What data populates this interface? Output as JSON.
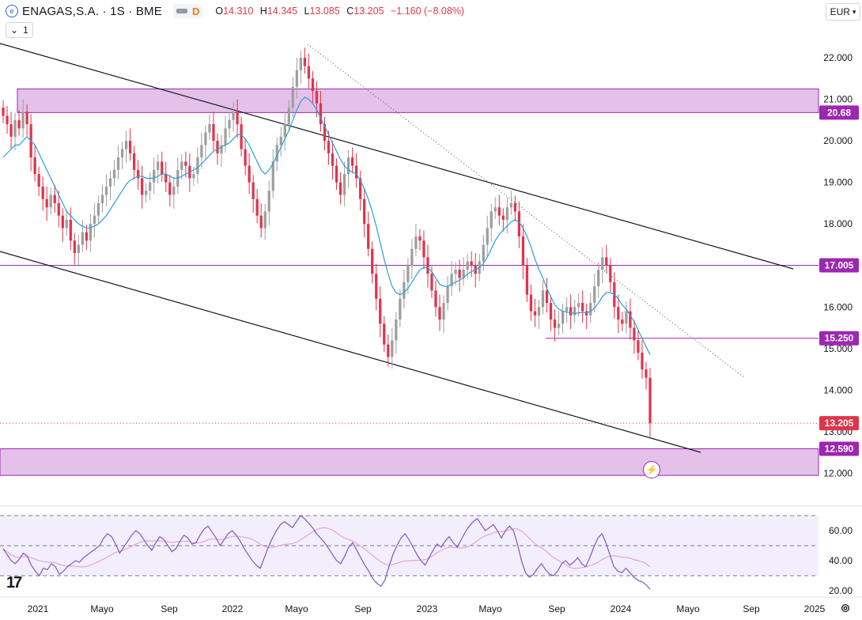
{
  "header": {
    "symbol": "ENAGAS,S.A. · 1S · BME",
    "interval_badge": "D",
    "open_label": "O",
    "open_value": "14.310",
    "high_label": "H",
    "high_value": "14.345",
    "low_label": "L",
    "low_value": "13.085",
    "close_label": "C",
    "close_value": "13.205",
    "change": "−1.160 (−8.08%)",
    "indicator_toggle": "1",
    "currency": "EUR"
  },
  "colors": {
    "up": "#9e9e9e",
    "down": "#e0344a",
    "sma": "#2a9ee0",
    "zone": "#e1bee7",
    "zone_line": "#9c27b0",
    "trend": "#131722",
    "rsi": "#7e57c2",
    "rsi_ma": "#e8a3d6",
    "rsi_bg": "#f3eefb"
  },
  "chart_data": [
    {
      "type": "candlestick",
      "title": "ENAGAS,S.A. · 1S · BME",
      "y_axis_ticks": [
        "22.000",
        "21.000",
        "20.000",
        "19.000",
        "18.000",
        "17.000",
        "16.000",
        "15.000",
        "14.000",
        "13.000",
        "12.000"
      ],
      "ylim": [
        11.85,
        22.5
      ],
      "x_axis_labels": [
        "2021",
        "Mayo",
        "Sep",
        "2022",
        "Mayo",
        "Sep",
        "2023",
        "Mayo",
        "Sep",
        "2024",
        "Mayo",
        "Sep",
        "2025"
      ],
      "price_labels": [
        {
          "text": "20.68",
          "value": 20.68,
          "kind": "zone"
        },
        {
          "text": "17.005",
          "value": 17.005,
          "kind": "zone"
        },
        {
          "text": "15.250",
          "value": 15.25,
          "kind": "zone"
        },
        {
          "text": "13.205",
          "value": 13.205,
          "kind": "last"
        },
        {
          "text": "12.590",
          "value": 12.59,
          "kind": "zone"
        }
      ],
      "zones": [
        {
          "from": 20.68,
          "to": 21.25
        },
        {
          "from": 11.95,
          "to": 12.59
        }
      ],
      "horizontal_lines": [
        17.005,
        15.25
      ],
      "close_series": [
        20.6,
        20.4,
        20.1,
        20.5,
        20.3,
        20.7,
        20.4,
        19.6,
        19.2,
        18.9,
        18.6,
        18.4,
        18.7,
        18.5,
        18.2,
        17.9,
        18.1,
        17.6,
        17.3,
        17.5,
        17.8,
        17.6,
        18.0,
        18.2,
        18.5,
        18.7,
        18.9,
        19.1,
        19.3,
        19.6,
        19.8,
        20.0,
        19.7,
        19.3,
        19.1,
        18.7,
        18.8,
        19.0,
        19.3,
        19.5,
        19.2,
        19.0,
        18.7,
        18.9,
        19.3,
        19.5,
        19.4,
        19.1,
        19.2,
        19.6,
        19.9,
        20.2,
        20.4,
        20.0,
        19.7,
        19.9,
        20.3,
        20.5,
        20.7,
        20.4,
        19.8,
        19.4,
        19.0,
        18.6,
        18.2,
        17.9,
        18.3,
        18.8,
        19.5,
        19.9,
        20.1,
        20.4,
        20.8,
        21.3,
        21.7,
        22.0,
        21.8,
        21.5,
        21.2,
        20.9,
        20.4,
        20.0,
        19.7,
        19.4,
        19.0,
        18.7,
        19.2,
        19.6,
        19.4,
        19.1,
        18.6,
        18.0,
        17.4,
        16.8,
        16.2,
        15.6,
        15.1,
        14.8,
        15.2,
        15.7,
        16.2,
        16.6,
        17.0,
        17.4,
        17.7,
        17.6,
        17.2,
        16.8,
        16.4,
        16.0,
        15.7,
        16.1,
        16.5,
        16.8,
        16.9,
        16.7,
        16.9,
        17.1,
        17.0,
        16.8,
        17.1,
        17.5,
        17.9,
        18.3,
        18.4,
        18.2,
        18.1,
        18.4,
        18.5,
        18.3,
        17.7,
        17.0,
        16.3,
        15.9,
        15.8,
        16.0,
        16.4,
        16.1,
        15.7,
        15.5,
        15.6,
        15.9,
        16.0,
        15.8,
        16.0,
        16.1,
        15.9,
        15.8,
        16.1,
        16.5,
        16.9,
        17.2,
        17.0,
        16.6,
        16.0,
        15.7,
        15.6,
        15.9,
        15.5,
        15.2,
        14.9,
        14.5,
        14.3,
        13.205
      ],
      "sma_series": [
        19.6,
        19.7,
        19.8,
        19.9,
        19.9,
        20.0,
        20.1,
        20.0,
        19.9,
        19.7,
        19.5,
        19.3,
        19.1,
        18.9,
        18.7,
        18.5,
        18.3,
        18.2,
        18.1,
        18.0,
        17.95,
        17.9,
        17.9,
        17.95,
        18.0,
        18.1,
        18.2,
        18.35,
        18.5,
        18.65,
        18.8,
        18.95,
        19.05,
        19.1,
        19.15,
        19.15,
        19.1,
        19.1,
        19.1,
        19.15,
        19.2,
        19.2,
        19.15,
        19.1,
        19.1,
        19.15,
        19.2,
        19.25,
        19.3,
        19.35,
        19.45,
        19.55,
        19.65,
        19.75,
        19.8,
        19.85,
        19.9,
        19.95,
        20.05,
        20.15,
        20.15,
        20.05,
        19.9,
        19.7,
        19.5,
        19.3,
        19.2,
        19.3,
        19.45,
        19.65,
        19.85,
        20.05,
        20.25,
        20.5,
        20.75,
        20.95,
        21.05,
        21.0,
        20.9,
        20.75,
        20.55,
        20.35,
        20.15,
        19.95,
        19.75,
        19.55,
        19.4,
        19.3,
        19.25,
        19.2,
        19.05,
        18.85,
        18.6,
        18.3,
        17.95,
        17.55,
        17.15,
        16.8,
        16.5,
        16.35,
        16.3,
        16.35,
        16.45,
        16.6,
        16.75,
        16.9,
        16.95,
        16.95,
        16.85,
        16.7,
        16.55,
        16.5,
        16.5,
        16.55,
        16.6,
        16.65,
        16.7,
        16.8,
        16.85,
        16.9,
        16.95,
        17.05,
        17.2,
        17.4,
        17.6,
        17.75,
        17.85,
        17.95,
        18.05,
        18.1,
        18.05,
        17.9,
        17.7,
        17.45,
        17.15,
        16.9,
        16.7,
        16.45,
        16.25,
        16.05,
        15.95,
        15.9,
        15.88,
        15.86,
        15.85,
        15.86,
        15.87,
        15.86,
        15.9,
        15.98,
        16.1,
        16.25,
        16.35,
        16.35,
        16.3,
        16.2,
        16.05,
        15.95,
        15.8,
        15.65,
        15.45,
        15.25,
        15.05,
        14.85
      ]
    },
    {
      "type": "line",
      "title": "",
      "y_axis_ticks": [
        "60.00",
        "40.00",
        "20.00"
      ],
      "ylim": [
        15,
        73
      ],
      "bands": [
        70,
        50,
        30
      ],
      "rsi_series": [
        48,
        44,
        40,
        38,
        41,
        45,
        43,
        37,
        33,
        30,
        35,
        34,
        38,
        36,
        31,
        33,
        36,
        38,
        40,
        39,
        42,
        44,
        46,
        48,
        50,
        55,
        58,
        56,
        51,
        45,
        49,
        53,
        57,
        60,
        58,
        54,
        50,
        47,
        52,
        56,
        54,
        50,
        46,
        48,
        53,
        57,
        55,
        51,
        52,
        57,
        61,
        63,
        59,
        55,
        50,
        54,
        58,
        60,
        57,
        53,
        48,
        44,
        40,
        37,
        35,
        42,
        49,
        55,
        60,
        64,
        66,
        64,
        62,
        66,
        70,
        68,
        65,
        62,
        58,
        55,
        52,
        48,
        44,
        40,
        38,
        43,
        49,
        52,
        47,
        42,
        37,
        33,
        28,
        25,
        23,
        27,
        36,
        44,
        50,
        55,
        58,
        54,
        49,
        44,
        40,
        37,
        42,
        47,
        51,
        49,
        53,
        56,
        52,
        49,
        54,
        59,
        63,
        66,
        68,
        64,
        60,
        62,
        64,
        60,
        55,
        60,
        63,
        60,
        51,
        40,
        32,
        29,
        31,
        35,
        38,
        34,
        31,
        30,
        33,
        38,
        40,
        37,
        39,
        42,
        38,
        36,
        42,
        49,
        55,
        58,
        52,
        44,
        36,
        33,
        32,
        35,
        32,
        29,
        27,
        26,
        24,
        21
      ]
    }
  ]
}
